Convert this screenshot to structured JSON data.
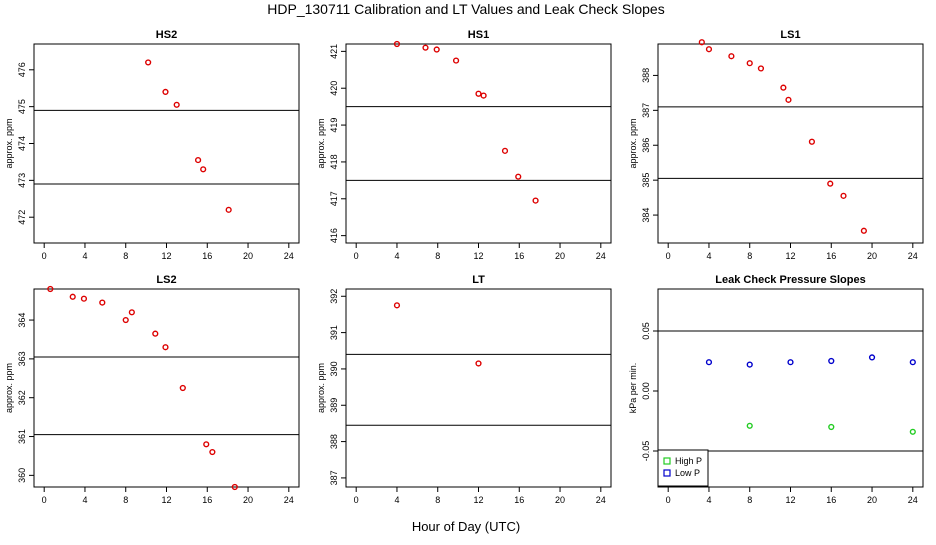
{
  "title": "HDP_130711  Calibration and LT Values and Leak Check Slopes",
  "xlabel": "Hour of Day (UTC)",
  "chart_data": [
    {
      "type": "scatter",
      "title": "HS2",
      "ylabel": "approx. ppm",
      "xlim": [
        -1,
        25
      ],
      "ylim": [
        471.3,
        476.7
      ],
      "xticks": [
        0,
        4,
        8,
        12,
        16,
        20,
        24
      ],
      "yticks": [
        472,
        473,
        474,
        475,
        476
      ],
      "hlines": [
        474.9,
        472.9
      ],
      "series": [
        {
          "color": "#dd0000",
          "marker": "circle",
          "x": [
            10.2,
            11.9,
            13.0,
            15.1,
            15.6,
            18.1
          ],
          "y": [
            476.2,
            475.4,
            475.05,
            473.55,
            473.3,
            472.2
          ]
        }
      ]
    },
    {
      "type": "scatter",
      "title": "HS1",
      "ylabel": "approx. ppm",
      "xlim": [
        -1,
        25
      ],
      "ylim": [
        415.8,
        421.2
      ],
      "xticks": [
        0,
        4,
        8,
        12,
        16,
        20,
        24
      ],
      "yticks": [
        416,
        417,
        418,
        419,
        420,
        421
      ],
      "hlines": [
        419.5,
        417.5
      ],
      "series": [
        {
          "color": "#dd0000",
          "marker": "circle",
          "x": [
            4.0,
            6.8,
            7.9,
            9.8,
            12.0,
            12.5,
            14.6,
            15.9,
            17.6
          ],
          "y": [
            421.2,
            421.1,
            421.05,
            420.75,
            419.85,
            419.8,
            418.3,
            417.6,
            416.95
          ]
        }
      ]
    },
    {
      "type": "scatter",
      "title": "LS1",
      "ylabel": "approx. ppm",
      "xlim": [
        -1,
        25
      ],
      "ylim": [
        383.2,
        388.9
      ],
      "xticks": [
        0,
        4,
        8,
        12,
        16,
        20,
        24
      ],
      "yticks": [
        384,
        385,
        386,
        387,
        388
      ],
      "hlines": [
        387.1,
        385.05
      ],
      "series": [
        {
          "color": "#dd0000",
          "marker": "circle",
          "x": [
            3.3,
            4.0,
            6.2,
            8.0,
            9.1,
            11.3,
            11.8,
            14.1,
            15.9,
            17.2,
            19.2
          ],
          "y": [
            388.95,
            388.75,
            388.55,
            388.35,
            388.2,
            387.65,
            387.3,
            386.1,
            384.9,
            384.55,
            383.55
          ]
        }
      ]
    },
    {
      "type": "scatter",
      "title": "LS2",
      "ylabel": "approx. ppm",
      "xlim": [
        -1,
        25
      ],
      "ylim": [
        359.7,
        364.8
      ],
      "xticks": [
        0,
        4,
        8,
        12,
        16,
        20,
        24
      ],
      "yticks": [
        360,
        361,
        362,
        363,
        364
      ],
      "hlines": [
        363.05,
        361.05
      ],
      "series": [
        {
          "color": "#dd0000",
          "marker": "circle",
          "x": [
            0.6,
            2.8,
            3.9,
            5.7,
            8.0,
            8.6,
            10.9,
            11.9,
            13.6,
            15.9,
            16.5,
            18.7
          ],
          "y": [
            364.8,
            364.6,
            364.55,
            364.45,
            364.0,
            364.2,
            363.65,
            363.3,
            362.25,
            360.8,
            360.6,
            359.7
          ]
        }
      ]
    },
    {
      "type": "scatter",
      "title": "LT",
      "ylabel": "approx. ppm",
      "xlim": [
        -1,
        25
      ],
      "ylim": [
        386.75,
        392.2
      ],
      "xticks": [
        0,
        4,
        8,
        12,
        16,
        20,
        24
      ],
      "yticks": [
        387,
        388,
        389,
        390,
        391,
        392
      ],
      "hlines": [
        390.4,
        388.45
      ],
      "series": [
        {
          "color": "#dd0000",
          "marker": "circle",
          "x": [
            4.0,
            12.0
          ],
          "y": [
            391.75,
            390.15
          ]
        }
      ]
    },
    {
      "type": "scatter",
      "title": "Leak Check Pressure Slopes",
      "ylabel": "kPa per min.",
      "xlim": [
        -1,
        25
      ],
      "ylim": [
        -0.08,
        0.085
      ],
      "xticks": [
        0,
        4,
        8,
        12,
        16,
        20,
        24
      ],
      "yticks": [
        -0.05,
        0.0,
        0.05
      ],
      "ytick_labels": [
        "-0.05",
        "0.00",
        "0.05"
      ],
      "hlines": [
        0.05,
        -0.05
      ],
      "legend": "bottom-left",
      "series": [
        {
          "name": "High P",
          "color": "#22cc22",
          "marker": "circle",
          "x": [
            8.0,
            16.0,
            24.0
          ],
          "y": [
            -0.029,
            -0.03,
            -0.034
          ]
        },
        {
          "name": "Low P",
          "color": "#0000cc",
          "marker": "circle",
          "x": [
            4.0,
            8.0,
            12.0,
            16.0,
            20.0,
            24.0
          ],
          "y": [
            0.024,
            0.022,
            0.024,
            0.025,
            0.028,
            0.024
          ]
        }
      ]
    }
  ]
}
